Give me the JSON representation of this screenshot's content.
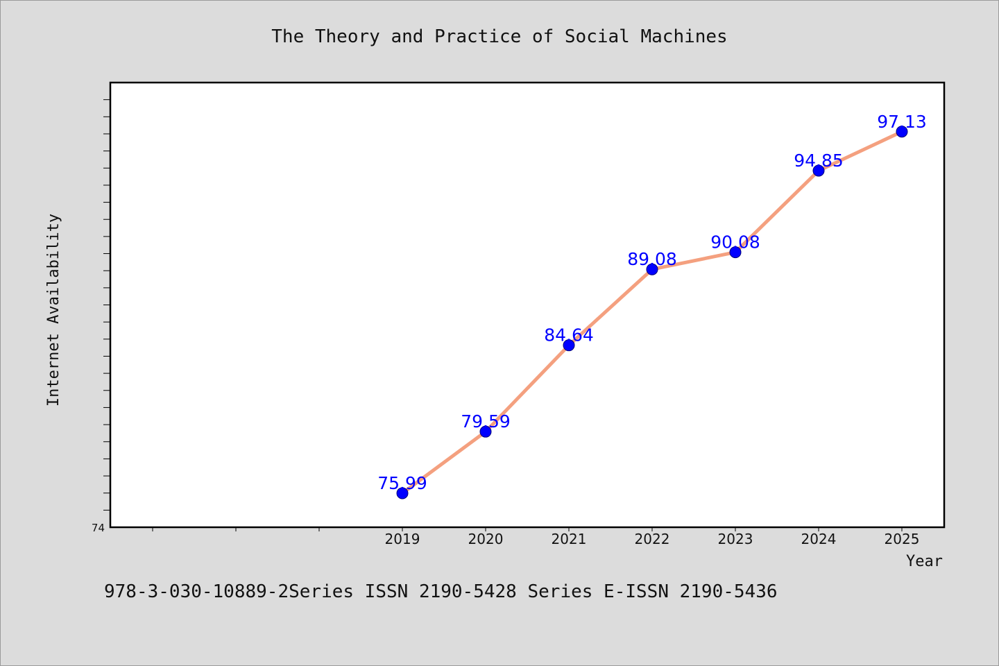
{
  "chart_data": {
    "type": "line",
    "title": "The Theory and Practice of Social Machines",
    "xlabel": "Year",
    "ylabel": "Internet Availability",
    "categories": [
      "2019",
      "2020",
      "2021",
      "2022",
      "2023",
      "2024",
      "2025"
    ],
    "x_slots": 10,
    "x_first_labeled_slot": 3,
    "series": [
      {
        "values": [
          75.99,
          79.59,
          84.64,
          89.08,
          90.08,
          94.85,
          97.13
        ],
        "data_labels": [
          "75.99",
          "79.59",
          "84.64",
          "89.08",
          "90.08",
          "94.85",
          "97.13"
        ],
        "line_color": "#f4a07f",
        "marker_color": "#0000ff"
      }
    ],
    "ylim": [
      74,
      100
    ],
    "y_tick_step": 1,
    "y_tick_labels": [
      "74"
    ],
    "grid": false,
    "legend": "none"
  },
  "footer": {
    "text": "978-3-030-10889-2Series ISSN 2190-5428 Series E-ISSN 2190-5436"
  },
  "colors": {
    "background": "#dcdcdc",
    "plot_background": "#ffffff",
    "axis": "#000000",
    "data_label": "#0000ff"
  }
}
